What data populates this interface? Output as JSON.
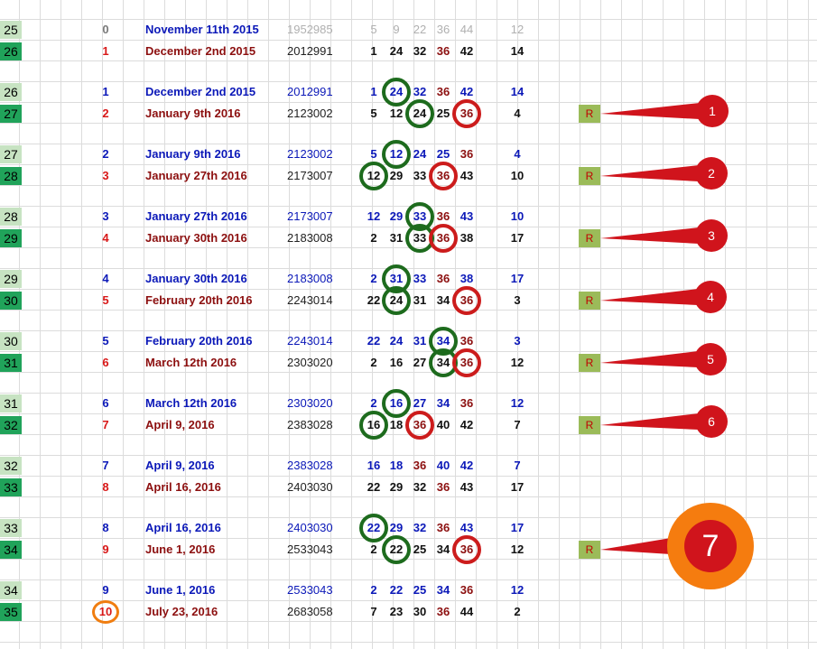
{
  "colors": {
    "blue": "#0b18b8",
    "maroon": "#8c0f0f",
    "black": "#111111",
    "grey": "#b0b0b0",
    "red": "#d81818",
    "darkgrey": "#7a7a7a"
  },
  "rows": [
    {
      "idx": "25",
      "shade": "light",
      "n": "0",
      "date": "November 11th 2015",
      "code": "1952985",
      "nums": [
        "5",
        "9",
        "22",
        "36",
        "44"
      ],
      "last": "12",
      "style": "grey-top"
    },
    {
      "idx": "26",
      "shade": "dark",
      "n": "1",
      "date": "December 2nd 2015",
      "code": "2012991",
      "nums": [
        "1",
        "24",
        "32",
        "36",
        "42"
      ],
      "last": "14",
      "style": "bottom"
    },
    {
      "idx": "26",
      "shade": "light",
      "n": "1",
      "date": "December 2nd 2015",
      "code": "2012991",
      "nums": [
        "1",
        "24",
        "32",
        "36",
        "42"
      ],
      "last": "14",
      "style": "top"
    },
    {
      "idx": "27",
      "shade": "dark",
      "n": "2",
      "date": "January 9th 2016",
      "code": "2123002",
      "nums": [
        "5",
        "12",
        "24",
        "25",
        "36"
      ],
      "last": "4",
      "style": "bottom"
    },
    {
      "idx": "27",
      "shade": "light",
      "n": "2",
      "date": "January 9th 2016",
      "code": "2123002",
      "nums": [
        "5",
        "12",
        "24",
        "25",
        "36"
      ],
      "last": "4",
      "style": "top"
    },
    {
      "idx": "28",
      "shade": "dark",
      "n": "3",
      "date": "January 27th 2016",
      "code": "2173007",
      "nums": [
        "12",
        "29",
        "33",
        "36",
        "43"
      ],
      "last": "10",
      "style": "bottom"
    },
    {
      "idx": "28",
      "shade": "light",
      "n": "3",
      "date": "January 27th 2016",
      "code": "2173007",
      "nums": [
        "12",
        "29",
        "33",
        "36",
        "43"
      ],
      "last": "10",
      "style": "top"
    },
    {
      "idx": "29",
      "shade": "dark",
      "n": "4",
      "date": "January 30th 2016",
      "code": "2183008",
      "nums": [
        "2",
        "31",
        "33",
        "36",
        "38"
      ],
      "last": "17",
      "style": "bottom"
    },
    {
      "idx": "29",
      "shade": "light",
      "n": "4",
      "date": "January 30th 2016",
      "code": "2183008",
      "nums": [
        "2",
        "31",
        "33",
        "36",
        "38"
      ],
      "last": "17",
      "style": "top"
    },
    {
      "idx": "30",
      "shade": "dark",
      "n": "5",
      "date": "February 20th 2016",
      "code": "2243014",
      "nums": [
        "22",
        "24",
        "31",
        "34",
        "36"
      ],
      "last": "3",
      "style": "bottom"
    },
    {
      "idx": "30",
      "shade": "light",
      "n": "5",
      "date": "February 20th 2016",
      "code": "2243014",
      "nums": [
        "22",
        "24",
        "31",
        "34",
        "36"
      ],
      "last": "3",
      "style": "top"
    },
    {
      "idx": "31",
      "shade": "dark",
      "n": "6",
      "date": "March 12th 2016",
      "code": "2303020",
      "nums": [
        "2",
        "16",
        "27",
        "34",
        "36"
      ],
      "last": "12",
      "style": "bottom"
    },
    {
      "idx": "31",
      "shade": "light",
      "n": "6",
      "date": "March 12th 2016",
      "code": "2303020",
      "nums": [
        "2",
        "16",
        "27",
        "34",
        "36"
      ],
      "last": "12",
      "style": "top"
    },
    {
      "idx": "32",
      "shade": "dark",
      "n": "7",
      "date": "April 9, 2016",
      "code": "2383028",
      "nums": [
        "16",
        "18",
        "36",
        "40",
        "42"
      ],
      "last": "7",
      "style": "bottom"
    },
    {
      "idx": "32",
      "shade": "light",
      "n": "7",
      "date": "April 9, 2016",
      "code": "2383028",
      "nums": [
        "16",
        "18",
        "36",
        "40",
        "42"
      ],
      "last": "7",
      "style": "top"
    },
    {
      "idx": "33",
      "shade": "dark",
      "n": "8",
      "date": "April 16, 2016",
      "code": "2403030",
      "nums": [
        "22",
        "29",
        "32",
        "36",
        "43"
      ],
      "last": "17",
      "style": "bottom"
    },
    {
      "idx": "33",
      "shade": "light",
      "n": "8",
      "date": "April 16, 2016",
      "code": "2403030",
      "nums": [
        "22",
        "29",
        "32",
        "36",
        "43"
      ],
      "last": "17",
      "style": "top"
    },
    {
      "idx": "34",
      "shade": "dark",
      "n": "9",
      "date": "June 1, 2016",
      "code": "2533043",
      "nums": [
        "2",
        "22",
        "25",
        "34",
        "36"
      ],
      "last": "12",
      "style": "bottom"
    },
    {
      "idx": "34",
      "shade": "light",
      "n": "9",
      "date": "June 1, 2016",
      "code": "2533043",
      "nums": [
        "2",
        "22",
        "25",
        "34",
        "36"
      ],
      "last": "12",
      "style": "top"
    },
    {
      "idx": "35",
      "shade": "dark",
      "n": "10",
      "date": "July 23, 2016",
      "code": "2683058",
      "nums": [
        "7",
        "23",
        "30",
        "36",
        "44"
      ],
      "last": "2",
      "style": "bottom"
    }
  ],
  "markers": [
    {
      "label": "R",
      "number": "1"
    },
    {
      "label": "R",
      "number": "2"
    },
    {
      "label": "R",
      "number": "3"
    },
    {
      "label": "R",
      "number": "4"
    },
    {
      "label": "R",
      "number": "5"
    },
    {
      "label": "R",
      "number": "6"
    },
    {
      "label": "R",
      "number": "7"
    }
  ]
}
